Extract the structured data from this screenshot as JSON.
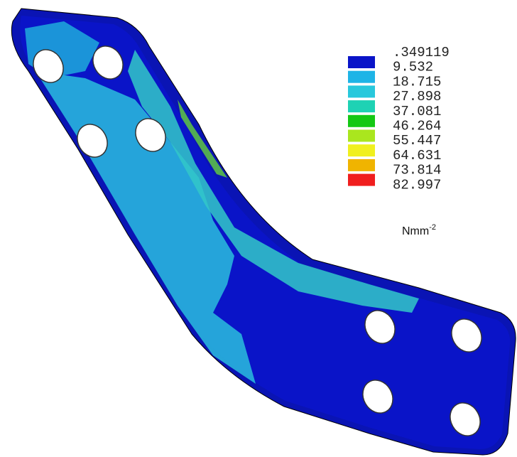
{
  "legend": {
    "levels": [
      {
        "label": ".349119",
        "color": "#0a14c8"
      },
      {
        "label": "9.532",
        "color": "#1eb4e6"
      },
      {
        "label": "18.715",
        "color": "#28c8dc"
      },
      {
        "label": "27.898",
        "color": "#1ed2b4"
      },
      {
        "label": "37.081",
        "color": "#14c814"
      },
      {
        "label": "46.264",
        "color": "#aae61e"
      },
      {
        "label": "55.447",
        "color": "#f0f01e"
      },
      {
        "label": "64.631",
        "color": "#f0b400"
      },
      {
        "label": "73.814",
        "color": "#f01e1e"
      },
      {
        "label": "82.997",
        "color": null
      }
    ]
  },
  "unit": {
    "base": "Nmm",
    "exponent": "-2"
  }
}
